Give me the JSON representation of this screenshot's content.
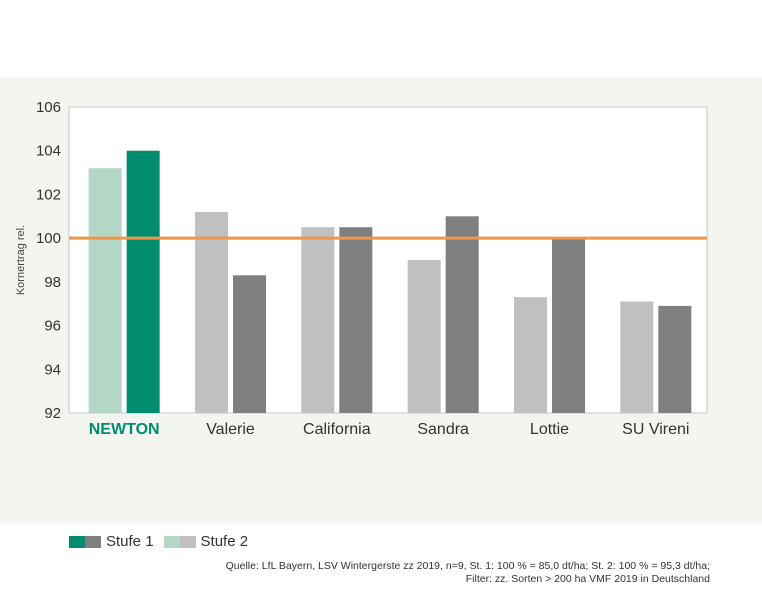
{
  "chart_data": {
    "type": "bar",
    "title": "",
    "xlabel": "",
    "ylabel": "Kornertrag rel.",
    "ylim": [
      92,
      106
    ],
    "yticks": [
      "92",
      "94",
      "96",
      "98",
      "100",
      "102",
      "104",
      "106"
    ],
    "categories": [
      "NEWTON",
      "Valerie",
      "California",
      "Sandra",
      "Lottie",
      "SU Vireni"
    ],
    "highlight_category": "NEWTON",
    "series": [
      {
        "name": "Stufe 2",
        "values": [
          103.2,
          101.2,
          100.5,
          99.0,
          97.3,
          97.1
        ]
      },
      {
        "name": "Stufe 1",
        "values": [
          104.0,
          98.3,
          100.5,
          101.0,
          100.0,
          96.9
        ]
      }
    ],
    "reference_line": 100,
    "grid": false,
    "legend_position": "bottom-left"
  },
  "legend": {
    "stufe1_label": "Stufe 1",
    "stufe2_label": "Stufe 2"
  },
  "source": {
    "line1": "Quelle: LfL Bayern, LSV Wintergerste zz 2019, n=9, St. 1: 100 % = 85,0 dt/ha; St. 2: 100 % = 95,3 dt/ha;",
    "line2": "Filter: zz. Sorten > 200 ha VMF 2019 in Deutschland"
  },
  "colors": {
    "panel_bg": "#f3f5f1",
    "plot_bg": "#ffffff",
    "highlight_stufe1": "#008c6e",
    "highlight_stufe2": "#b3d6c6",
    "other_stufe1": "#7f7f7f",
    "other_stufe2": "#c0c0c0",
    "reference_line": "#f0954a"
  }
}
